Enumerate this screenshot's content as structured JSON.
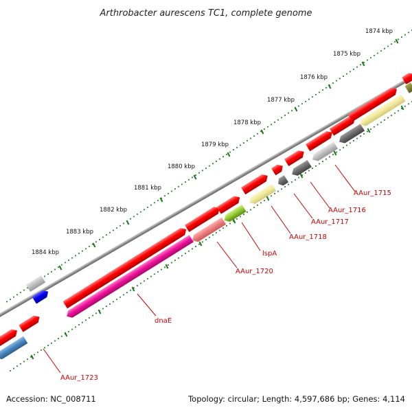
{
  "title": "Arthrobacter aurescens TC1, complete genome",
  "footer": {
    "accession": "Accession: NC_008711",
    "topology": "Topology: circular; Length: 4,597,686 bp; Genes: 4,114"
  },
  "ticks": [
    {
      "label": "1874 kbp"
    },
    {
      "label": "1875 kbp"
    },
    {
      "label": "1876 kbp"
    },
    {
      "label": "1877 kbp"
    },
    {
      "label": "1878 kbp"
    },
    {
      "label": "1879 kbp"
    },
    {
      "label": "1880 kbp"
    },
    {
      "label": "1881 kbp"
    },
    {
      "label": "1882 kbp"
    },
    {
      "label": "1883 kbp"
    },
    {
      "label": "1884 kbp"
    }
  ],
  "gene_labels": [
    {
      "label": "AAur_1715"
    },
    {
      "label": "AAur_1716"
    },
    {
      "label": "AAur_1717"
    },
    {
      "label": "AAur_1718"
    },
    {
      "label": "lspA"
    },
    {
      "label": "AAur_1720"
    },
    {
      "label": "dnaE"
    },
    {
      "label": "AAur_1723"
    }
  ],
  "colors": {
    "cds": "#ff0000",
    "dark_gray": "#6e6e6e",
    "light_gray": "#c0c0c0",
    "yellow": "#f2ea9c",
    "pink": "#f08080",
    "green": "#99cc33",
    "magenta": "#ee1199",
    "blue": "#0000ee",
    "steel": "#4a88c0",
    "backbone": "#8c8c8c",
    "tick": "#1a7a1a",
    "label": "#cc0000"
  }
}
